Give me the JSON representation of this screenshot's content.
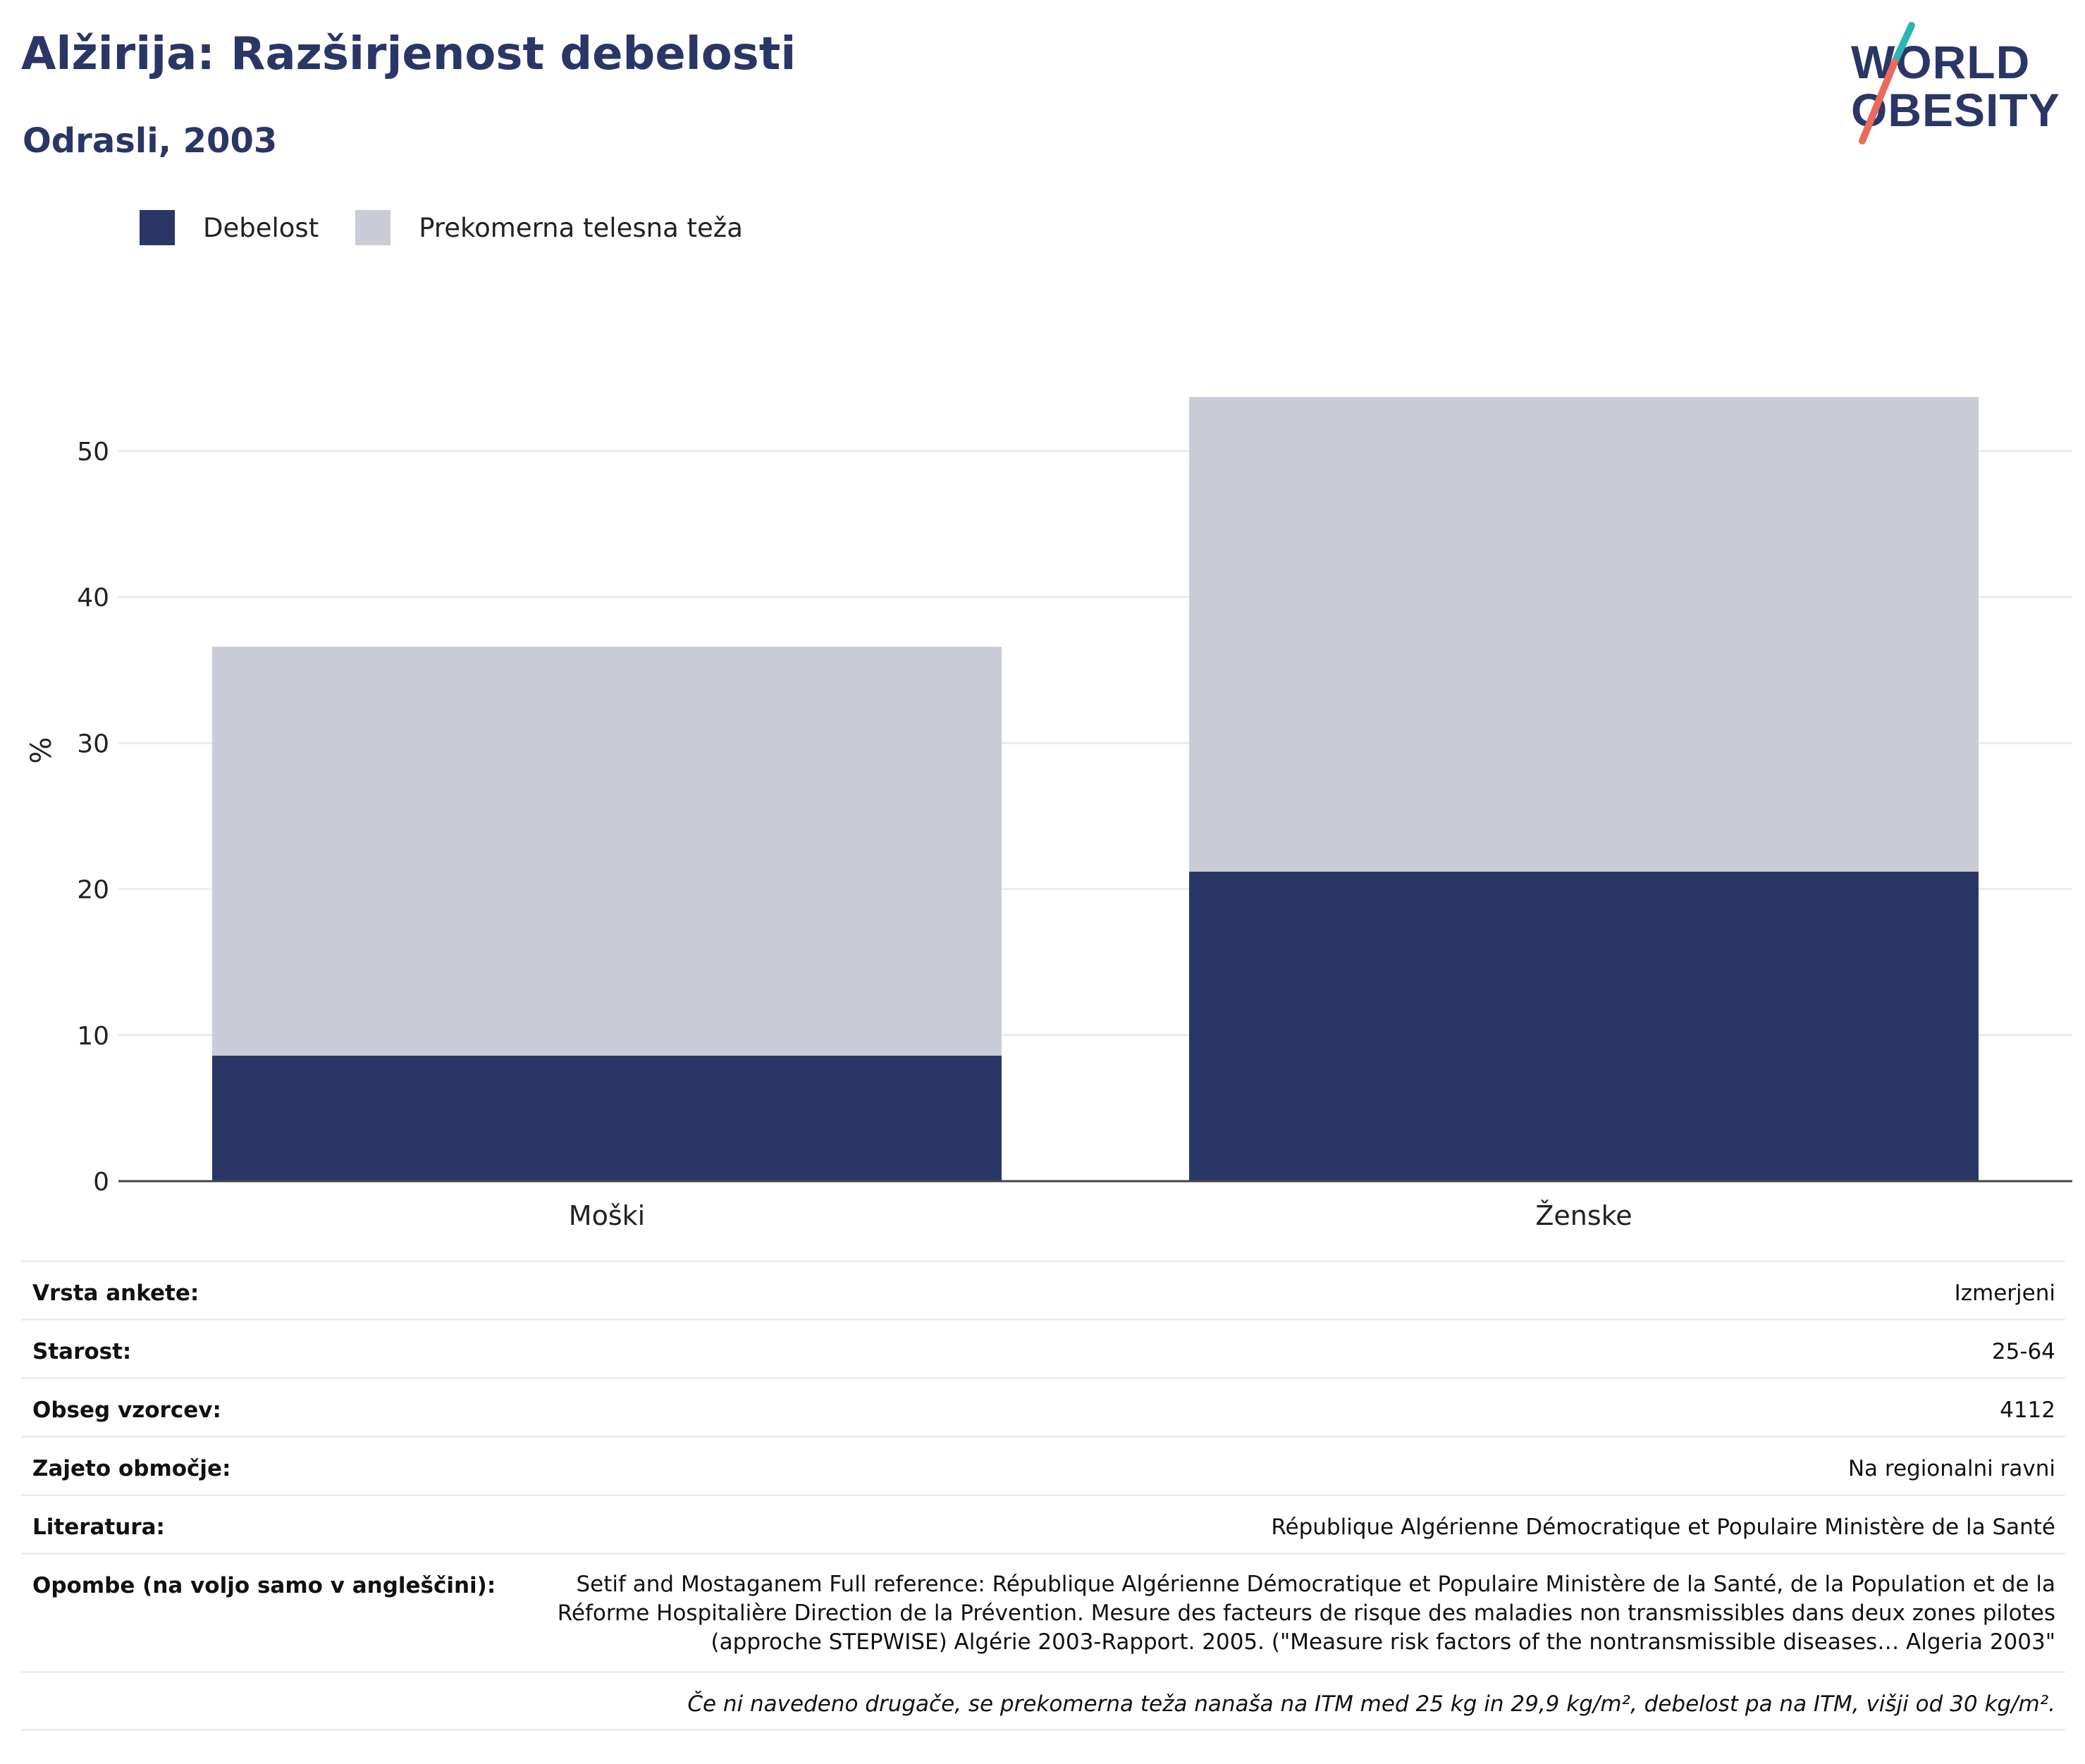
{
  "title": "Alžirija: Razširjenost debelosti",
  "subtitle": "Odrasli, 2003",
  "logo": {
    "line1": "WORLD",
    "line2": "OBESITY"
  },
  "colors": {
    "obesity": "#2a3665",
    "overweight": "#caccd8",
    "title": "#2a3665",
    "logo_teal": "#2cb5b8",
    "logo_coral": "#ea6b5c"
  },
  "legend": [
    {
      "label": "Debelost",
      "color": "#2a3665"
    },
    {
      "label": "Prekomerna telesna teža",
      "color": "#caccd8"
    }
  ],
  "chart_data": {
    "type": "bar",
    "stacked": true,
    "categories": [
      "Moški",
      "Ženske"
    ],
    "series": [
      {
        "name": "Debelost",
        "values": [
          8.6,
          21.2
        ]
      },
      {
        "name": "Prekomerna telesna teža",
        "values": [
          28.0,
          32.5
        ]
      }
    ],
    "ylabel": "%",
    "ylim": [
      0,
      60
    ],
    "yticks": [
      0,
      10,
      20,
      30,
      40,
      50
    ],
    "grid": true,
    "legend_position": "top-left"
  },
  "info": {
    "rows": [
      {
        "key": "Vrsta ankete:",
        "value": "Izmerjeni"
      },
      {
        "key": "Starost:",
        "value": "25-64"
      },
      {
        "key": "Obseg vzorcev:",
        "value": "4112"
      },
      {
        "key": "Zajeto območje:",
        "value": "Na regionalni ravni"
      },
      {
        "key": "Literatura:",
        "value": "République Algérienne Démocratique et Populaire Ministère de la Santé"
      }
    ],
    "notes_key": "Opombe (na voljo samo v angleščini):",
    "notes_value": "Setif and Mostaganem Full reference: République Algérienne Démocratique et Populaire Ministère de la Santé, de la Population et de la Réforme Hospitalière Direction de la Prévention. Mesure des facteurs de risque des maladies non transmissibles dans deux zones pilotes (approche STEPWISE) Algérie 2003-Rapport. 2005. (\"Measure risk factors of the nontransmissible diseases… Algeria 2003\"",
    "footnote": "Če ni navedeno drugače, se prekomerna teža nanaša na ITM med 25 kg in 29,9 kg/m², debelost pa na ITM, višji od 30 kg/m²."
  }
}
